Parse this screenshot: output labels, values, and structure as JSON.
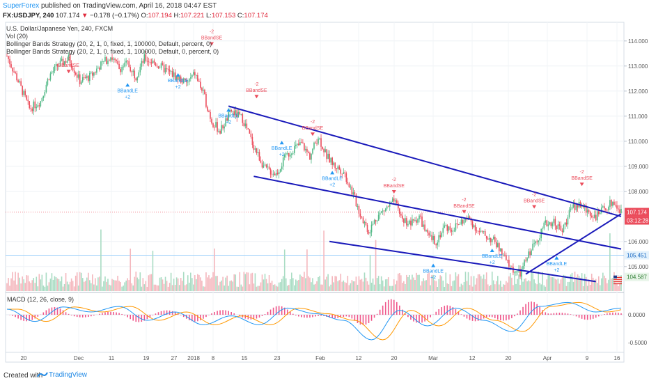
{
  "header": {
    "publisher": "SuperForex",
    "published_text": " published on TradingView.com, April 16, 2018 04:47 EST",
    "symbol": "FX:USDJPY, 240",
    "last": "107.174",
    "change": "−0.178 (−0.17%)",
    "o_label": "O:",
    "o": "107.194",
    "h_label": "H:",
    "h": "107.221",
    "l_label": "L:",
    "l": "107.153",
    "c_label": "C:",
    "c": "107.174"
  },
  "legend": {
    "title": "U.S. Dollar/Japanese Yen, 240, FXCM",
    "vol": "Vol (20)",
    "strategy1": "Bollinger Bands Strategy (20, 2, 1, 0, fixed, 1, 100000, Default, percent, 0)",
    "strategy2": "Bollinger Bands Strategy (20, 2, 1, 0, fixed, 1, 100000, Default, 0, percent, 0)"
  },
  "macd": {
    "label": "MACD (12, 26, close, 9)"
  },
  "price_axis": {
    "ticks": [
      "114.000",
      "113.000",
      "112.000",
      "111.000",
      "110.000",
      "109.000",
      "108.000",
      "106.000",
      "105.000"
    ],
    "tick_values": [
      114,
      113,
      112,
      111,
      110,
      109,
      108,
      106,
      105
    ],
    "last_price": "107.174",
    "countdown": "03:12:28",
    "level_1": "105.451",
    "level_2": "104.587"
  },
  "macd_axis": {
    "ticks": [
      "0.0000",
      "-0.5000"
    ]
  },
  "time_axis": {
    "labels": [
      "20",
      "Dec",
      "11",
      "19",
      "27",
      "2018",
      "8",
      "15",
      "23",
      "Feb",
      "12",
      "20",
      "Mar",
      "12",
      "20",
      "Apr",
      "9",
      "16"
    ]
  },
  "signals": {
    "short_label": "BBandSE",
    "long_label": "BBandLE",
    "short_qty": "-2",
    "long_qty": "+2"
  },
  "footer": {
    "created_with": "Created with",
    "brand": "TradingView"
  },
  "colors": {
    "up": "#53b987",
    "down": "#eb4d5c",
    "trendline": "#1a1aba",
    "macd_line": "#2196f3",
    "signal_line": "#ff9800",
    "hist": "#e91e63",
    "brand": "#2196f3"
  },
  "chart_data": {
    "type": "candlestick",
    "title": "U.S. Dollar/Japanese Yen, 240, FXCM",
    "ylim": [
      104.3,
      114.3
    ],
    "close_path": [
      [
        0,
        113.4
      ],
      [
        8,
        112.4
      ],
      [
        16,
        111.3
      ],
      [
        24,
        111.6
      ],
      [
        30,
        112.6
      ],
      [
        36,
        113.0
      ],
      [
        44,
        113.3
      ],
      [
        52,
        112.4
      ],
      [
        60,
        112.6
      ],
      [
        66,
        113.0
      ],
      [
        74,
        113.4
      ],
      [
        80,
        112.9
      ],
      [
        86,
        113.1
      ],
      [
        92,
        112.6
      ],
      [
        98,
        113.3
      ],
      [
        106,
        113.1
      ],
      [
        114,
        112.8
      ],
      [
        120,
        112.6
      ],
      [
        128,
        112.3
      ],
      [
        134,
        112.7
      ],
      [
        140,
        111.9
      ],
      [
        146,
        110.8
      ],
      [
        152,
        110.4
      ],
      [
        160,
        111.2
      ],
      [
        168,
        110.9
      ],
      [
        176,
        109.8
      ],
      [
        184,
        108.9
      ],
      [
        192,
        108.7
      ],
      [
        198,
        109.3
      ],
      [
        204,
        109.7
      ],
      [
        210,
        109.9
      ],
      [
        216,
        109.4
      ],
      [
        222,
        110.2
      ],
      [
        228,
        109.4
      ],
      [
        234,
        109.0
      ],
      [
        240,
        108.8
      ],
      [
        246,
        108.0
      ],
      [
        252,
        107.1
      ],
      [
        258,
        106.4
      ],
      [
        264,
        107.0
      ],
      [
        270,
        107.3
      ],
      [
        276,
        107.6
      ],
      [
        282,
        106.9
      ],
      [
        288,
        106.7
      ],
      [
        294,
        107.0
      ],
      [
        300,
        106.2
      ],
      [
        306,
        106.0
      ],
      [
        312,
        106.6
      ],
      [
        318,
        106.5
      ],
      [
        324,
        106.8
      ],
      [
        330,
        106.9
      ],
      [
        336,
        106.4
      ],
      [
        342,
        106.2
      ],
      [
        348,
        106.0
      ],
      [
        354,
        105.4
      ],
      [
        360,
        104.9
      ],
      [
        366,
        104.7
      ],
      [
        372,
        105.5
      ],
      [
        378,
        106.1
      ],
      [
        384,
        106.7
      ],
      [
        390,
        106.8
      ],
      [
        396,
        106.4
      ],
      [
        402,
        107.3
      ],
      [
        408,
        107.5
      ],
      [
        414,
        107.2
      ],
      [
        420,
        107.0
      ],
      [
        426,
        107.3
      ],
      [
        432,
        107.6
      ],
      [
        438,
        107.174
      ]
    ],
    "close_path_note_units": "bar index vs USDJPY price",
    "macd_path": [
      [
        0,
        0.1
      ],
      [
        20,
        -0.12
      ],
      [
        40,
        0.14
      ],
      [
        60,
        0.05
      ],
      [
        80,
        0.15
      ],
      [
        100,
        -0.1
      ],
      [
        120,
        0.05
      ],
      [
        140,
        -0.18
      ],
      [
        160,
        -0.02
      ],
      [
        180,
        -0.18
      ],
      [
        200,
        0.12
      ],
      [
        220,
        0.02
      ],
      [
        240,
        -0.1
      ],
      [
        260,
        -0.45
      ],
      [
        280,
        0.08
      ],
      [
        300,
        -0.2
      ],
      [
        320,
        0.12
      ],
      [
        340,
        -0.1
      ],
      [
        360,
        -0.3
      ],
      [
        380,
        0.15
      ],
      [
        400,
        0.22
      ],
      [
        420,
        0.05
      ],
      [
        438,
        0.12
      ]
    ],
    "trendlines": [
      {
        "from": [
          158,
          111.4
        ],
        "to": [
          438,
          107.0
        ]
      },
      {
        "from": [
          176,
          108.6
        ],
        "to": [
          438,
          105.7
        ]
      },
      {
        "from": [
          230,
          106.0
        ],
        "to": [
          420,
          104.4
        ]
      },
      {
        "from": [
          370,
          104.7
        ],
        "to": [
          438,
          107.1
        ]
      }
    ],
    "signals": [
      {
        "type": "short",
        "x": 44,
        "price": 112.6
      },
      {
        "type": "long",
        "x": 86,
        "price": 112.4
      },
      {
        "type": "long",
        "x": 122,
        "price": 112.8
      },
      {
        "type": "short",
        "x": 146,
        "price": 113.7
      },
      {
        "type": "long",
        "x": 158,
        "price": 111.4
      },
      {
        "type": "short",
        "x": 178,
        "price": 111.6
      },
      {
        "type": "long",
        "x": 196,
        "price": 110.1
      },
      {
        "type": "short",
        "x": 218,
        "price": 110.1
      },
      {
        "type": "long",
        "x": 232,
        "price": 108.9
      },
      {
        "type": "short",
        "x": 276,
        "price": 107.8
      },
      {
        "type": "long",
        "x": 304,
        "price": 105.2
      },
      {
        "type": "short",
        "x": 326,
        "price": 107.0
      },
      {
        "type": "long",
        "x": 346,
        "price": 105.8
      },
      {
        "type": "short",
        "x": 376,
        "price": 107.2
      },
      {
        "type": "long",
        "x": 392,
        "price": 105.5
      },
      {
        "type": "short",
        "x": 410,
        "price": 108.1
      }
    ]
  }
}
